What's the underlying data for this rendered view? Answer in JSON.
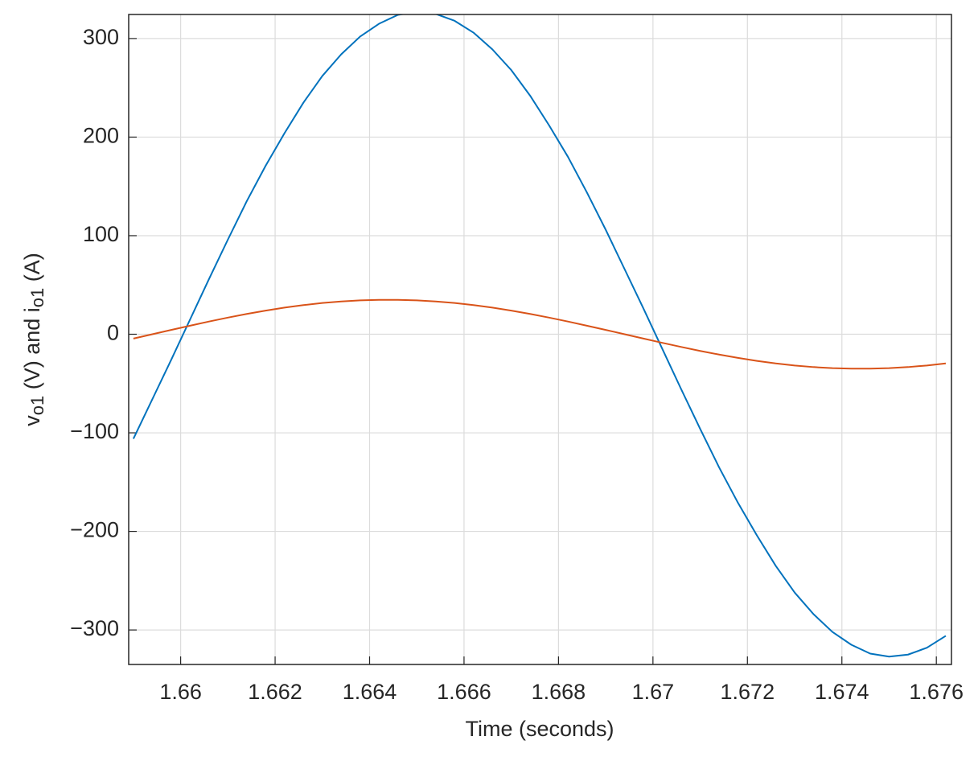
{
  "chart_data": {
    "type": "line",
    "xlabel": "Time (seconds)",
    "ylabel": [
      "v",
      "o1",
      " (V) and i",
      "o1",
      " (A)"
    ],
    "x": [
      1.659,
      1.6594,
      1.6598,
      1.6602,
      1.6606,
      1.661,
      1.6614,
      1.6618,
      1.6622,
      1.6626,
      1.663,
      1.6634,
      1.6638,
      1.6642,
      1.6646,
      1.665,
      1.6654,
      1.6658,
      1.6662,
      1.6666,
      1.667,
      1.6674,
      1.6678,
      1.6682,
      1.6686,
      1.669,
      1.6694,
      1.6698,
      1.6702,
      1.6706,
      1.671,
      1.6714,
      1.6718,
      1.6722,
      1.6726,
      1.673,
      1.6734,
      1.6738,
      1.6742,
      1.6746,
      1.675,
      1.6754,
      1.6758,
      1.6762
    ],
    "series": [
      {
        "color": "#0072bd",
        "values": [
          -106,
          -66,
          -26,
          15,
          56,
          96,
          135,
          171,
          204,
          235,
          262,
          284,
          302,
          315,
          324,
          327,
          325,
          318,
          306,
          289,
          268,
          242,
          212,
          180,
          144,
          106,
          66,
          26,
          -15,
          -56,
          -96,
          -135,
          -171,
          -204,
          -235,
          -262,
          -284,
          -302,
          -315,
          -324,
          -327,
          -325,
          -318,
          -306
        ]
      },
      {
        "color": "#d95319",
        "values": [
          -4.4,
          0,
          4.4,
          8.7,
          12.9,
          16.9,
          20.6,
          24.0,
          27.0,
          29.6,
          31.7,
          33.3,
          34.4,
          34.9,
          34.9,
          34.4,
          33.3,
          31.7,
          29.6,
          27.0,
          24.0,
          20.6,
          16.9,
          12.9,
          8.7,
          4.4,
          0,
          -4.4,
          -8.7,
          -12.9,
          -16.9,
          -20.6,
          -24.0,
          -27.0,
          -29.6,
          -31.7,
          -33.3,
          -34.4,
          -34.9,
          -34.9,
          -34.4,
          -33.3,
          -31.7,
          -29.6
        ]
      }
    ],
    "xlim": [
      1.6589,
      1.67632
    ],
    "ylim": [
      -335,
      324.4
    ],
    "xticks": [
      1.66,
      1.662,
      1.664,
      1.666,
      1.668,
      1.67,
      1.672,
      1.674,
      1.676
    ],
    "yticks": [
      {
        "value": -300,
        "label": "−300"
      },
      {
        "value": -200,
        "label": "−200"
      },
      {
        "value": -100,
        "label": "−100"
      },
      0,
      100,
      200,
      300
    ],
    "grid": true
  }
}
